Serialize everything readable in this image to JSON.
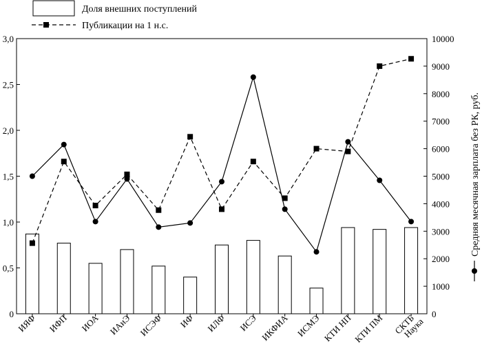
{
  "chart_data": {
    "type": "bar",
    "categories": [
      "ИЯФ",
      "ИФП",
      "ИОА",
      "ИАиЭ",
      "ИСЭФ",
      "ИФ",
      "ИЛФ",
      "ИСЭ",
      "ИКФИА",
      "ИСМЭ",
      "КТИ НП",
      "КТИ ПМ",
      "СКТБ Наука"
    ],
    "category_lines": [
      [
        "ИЯФ"
      ],
      [
        "ИФП"
      ],
      [
        "ИОА"
      ],
      [
        "ИАиЭ"
      ],
      [
        "ИСЭФ"
      ],
      [
        "ИФ"
      ],
      [
        "ИЛФ"
      ],
      [
        "ИСЭ"
      ],
      [
        "ИКФИА"
      ],
      [
        "ИСМЭ"
      ],
      [
        "КТИ НП"
      ],
      [
        "КТИ ПМ"
      ],
      [
        "СКТБ",
        "Наука"
      ]
    ],
    "series": [
      {
        "name": "Доля внешних поступлений",
        "type": "bar",
        "axis": "left",
        "values": [
          0.87,
          0.77,
          0.55,
          0.7,
          0.52,
          0.4,
          0.75,
          0.8,
          0.63,
          0.28,
          0.94,
          0.92,
          0.94
        ]
      },
      {
        "name": "Публикации на 1 н.с.",
        "type": "line",
        "style": "dashed",
        "marker": "square",
        "axis": "left",
        "values": [
          0.77,
          1.66,
          1.18,
          1.52,
          1.13,
          1.93,
          1.14,
          1.66,
          1.26,
          1.8,
          1.77,
          2.7,
          2.78
        ]
      },
      {
        "name": "Средняя месячная зарплата без РК, руб.",
        "type": "line",
        "style": "solid",
        "marker": "circle",
        "axis": "right",
        "values": [
          5000,
          6150,
          3350,
          4900,
          3150,
          3300,
          4800,
          8600,
          3800,
          2250,
          6250,
          4850,
          3350
        ]
      }
    ],
    "y_left": {
      "min": 0,
      "max": 3.0,
      "ticks": [
        0,
        0.5,
        1.0,
        1.5,
        2.0,
        2.5,
        3.0
      ],
      "tick_labels": [
        "0",
        "0,5",
        "1,0",
        "1,5",
        "2,0",
        "2,5",
        "3,0"
      ]
    },
    "y_right": {
      "min": 0,
      "max": 10000,
      "ticks": [
        0,
        1000,
        2000,
        3000,
        4000,
        5000,
        6000,
        7000,
        8000,
        9000,
        10000
      ],
      "tick_labels": [
        "0",
        "1000",
        "2000",
        "3000",
        "4000",
        "5000",
        "6000",
        "7000",
        "8000",
        "9000",
        "10000"
      ],
      "label": "Средняя месячная зарплата без РК, руб."
    },
    "legend_position": "top-left",
    "grid": false
  },
  "colors": {
    "ink": "#000000",
    "bar_fill": "#ffffff"
  }
}
